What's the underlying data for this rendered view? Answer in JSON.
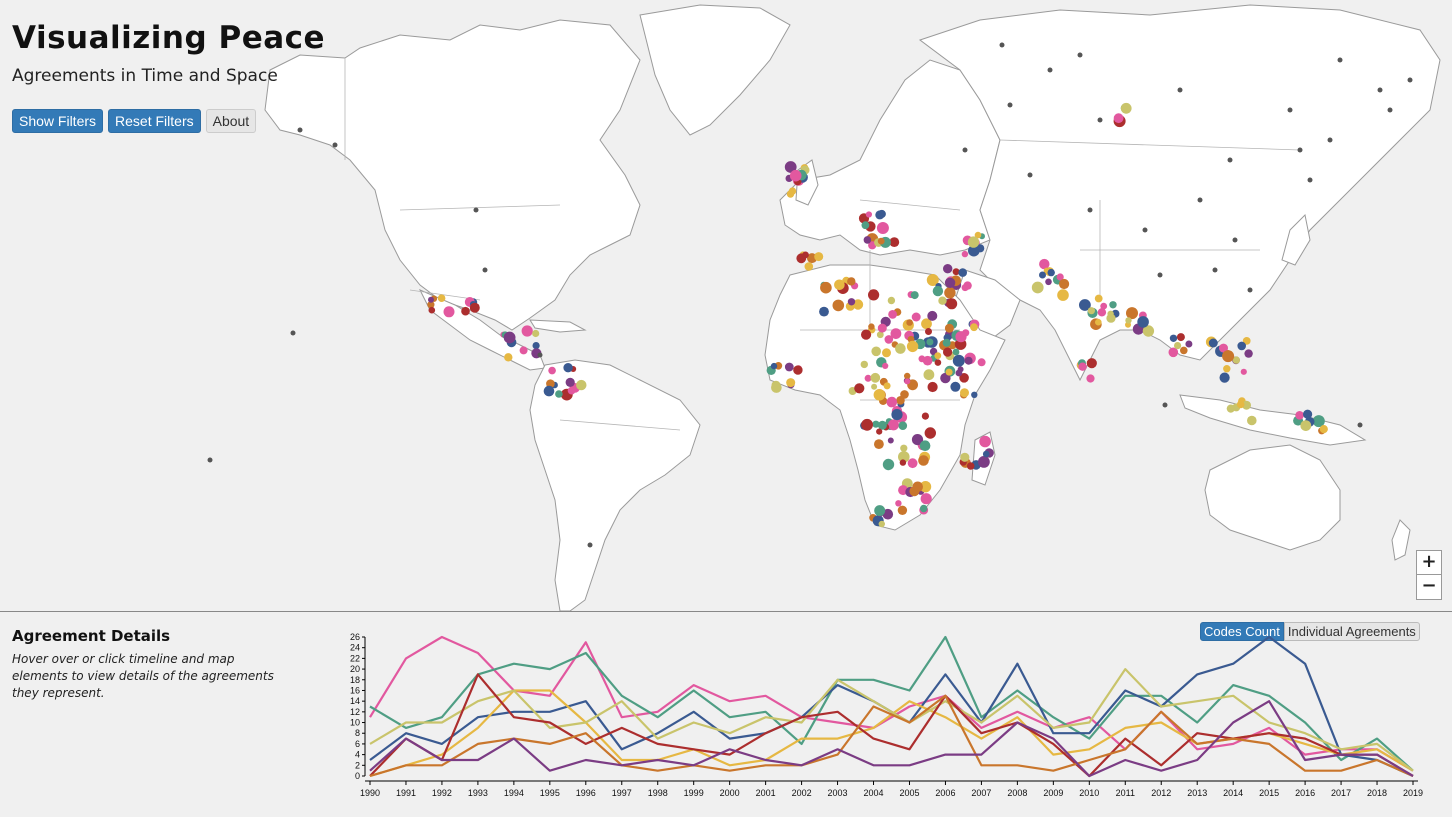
{
  "header": {
    "title": "Visualizing Peace",
    "subtitle": "Agreements in Time and Space"
  },
  "buttons": {
    "show_filters": "Show Filters",
    "reset_filters": "Reset Filters",
    "about": "About"
  },
  "map_controls": {
    "zoom_in": "+",
    "zoom_out": "−"
  },
  "details": {
    "title": "Agreement Details",
    "text": "Hover over or click timeline and map elements to view details of the agreements they represent."
  },
  "view_toggle": {
    "codes_count": "Codes Count",
    "individual_agreements": "Individual Agreements",
    "selected": "Codes Count"
  },
  "colors": {
    "accent": "#337ab7",
    "series": [
      "#e2589f",
      "#4f9e84",
      "#3a5a91",
      "#e6b843",
      "#c9c46b",
      "#ac2e2e",
      "#c9762c",
      "#7b3c84"
    ]
  },
  "chart_data": {
    "type": "line",
    "x": [
      1990,
      1991,
      1992,
      1993,
      1994,
      1995,
      1996,
      1997,
      1998,
      1999,
      2000,
      2001,
      2002,
      2003,
      2004,
      2005,
      2006,
      2007,
      2008,
      2009,
      2010,
      2011,
      2012,
      2013,
      2014,
      2015,
      2016,
      2017,
      2018,
      2019
    ],
    "ylim": [
      0,
      26
    ],
    "yticks": [
      0,
      2,
      4,
      6,
      8,
      10,
      12,
      14,
      16,
      18,
      20,
      22,
      24,
      26
    ],
    "series": [
      {
        "color": "#e2589f",
        "values": [
          11,
          22,
          26,
          23,
          16,
          15,
          25,
          11,
          12,
          17,
          14,
          15,
          11,
          10,
          9,
          13,
          15,
          9,
          12,
          9,
          11,
          5,
          12,
          5,
          6,
          9,
          4,
          5,
          5,
          1
        ]
      },
      {
        "color": "#4f9e84",
        "values": [
          13,
          9,
          11,
          19,
          21,
          20,
          23,
          15,
          11,
          16,
          11,
          12,
          6,
          18,
          18,
          16,
          26,
          11,
          16,
          11,
          7,
          15,
          15,
          10,
          17,
          15,
          10,
          3,
          7,
          1
        ]
      },
      {
        "color": "#3a5a91",
        "values": [
          3,
          8,
          6,
          11,
          12,
          12,
          14,
          5,
          8,
          12,
          7,
          8,
          11,
          17,
          14,
          10,
          19,
          10,
          21,
          8,
          8,
          16,
          13,
          19,
          21,
          26,
          21,
          4,
          3,
          0
        ]
      },
      {
        "color": "#e6b843",
        "values": [
          0,
          2,
          4,
          9,
          16,
          16,
          10,
          3,
          3,
          5,
          2,
          3,
          7,
          7,
          9,
          14,
          11,
          7,
          11,
          4,
          5,
          9,
          10,
          6,
          7,
          8,
          6,
          4,
          5,
          1
        ]
      },
      {
        "color": "#c9c46b",
        "values": [
          6,
          10,
          10,
          14,
          16,
          9,
          10,
          14,
          7,
          10,
          8,
          11,
          10,
          18,
          14,
          10,
          14,
          10,
          15,
          9,
          10,
          20,
          13,
          14,
          15,
          10,
          8,
          5,
          6,
          1
        ]
      },
      {
        "color": "#ac2e2e",
        "values": [
          0,
          7,
          3,
          19,
          11,
          10,
          6,
          9,
          6,
          5,
          4,
          8,
          11,
          12,
          7,
          5,
          15,
          8,
          10,
          6,
          0,
          7,
          2,
          8,
          7,
          8,
          7,
          4,
          4,
          0
        ]
      },
      {
        "color": "#c9762c",
        "values": [
          0,
          2,
          2,
          6,
          7,
          6,
          8,
          2,
          1,
          2,
          1,
          2,
          2,
          4,
          13,
          10,
          15,
          2,
          2,
          1,
          3,
          5,
          12,
          6,
          7,
          6,
          1,
          1,
          3,
          0
        ]
      },
      {
        "color": "#7b3c84",
        "values": [
          1,
          7,
          3,
          3,
          7,
          1,
          3,
          2,
          3,
          2,
          5,
          3,
          2,
          5,
          2,
          2,
          4,
          4,
          10,
          7,
          0,
          3,
          1,
          3,
          10,
          14,
          3,
          4,
          4,
          0
        ]
      }
    ]
  }
}
